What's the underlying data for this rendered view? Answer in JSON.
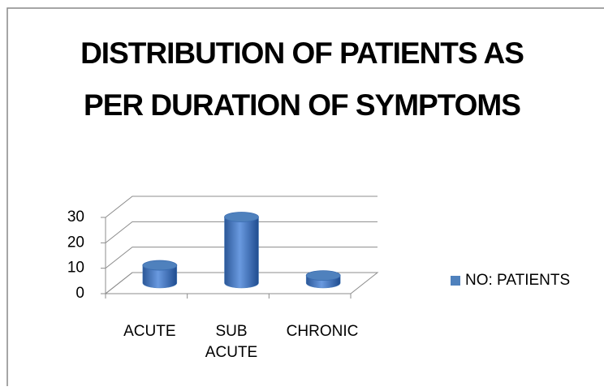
{
  "chart_data": {
    "type": "bar3d",
    "title": "DISTRIBUTION OF PATIENTS AS PER DURATION OF SYMPTOMS",
    "categories": [
      "ACUTE",
      "SUB ACUTE",
      "CHRONIC"
    ],
    "series": [
      {
        "name": "NO: PATIENTS",
        "color": "#4f81bd",
        "values": [
          7,
          26,
          3
        ]
      }
    ],
    "ylim": [
      0,
      30
    ],
    "yticks": [
      0,
      10,
      20,
      30
    ],
    "grid": true,
    "legend": "right"
  }
}
